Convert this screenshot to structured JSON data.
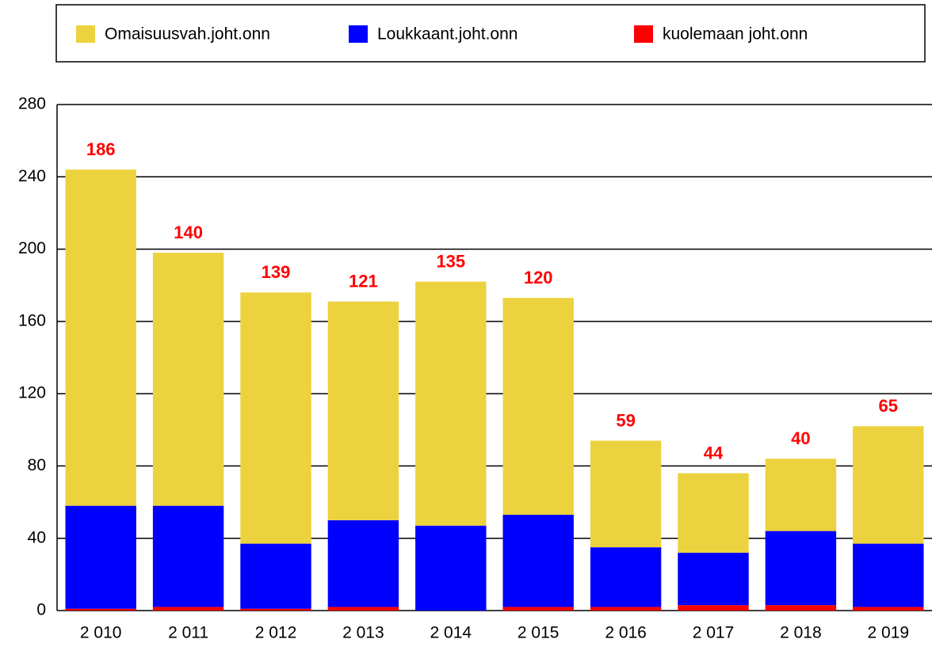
{
  "chart_data": {
    "type": "bar",
    "stacked": true,
    "categories": [
      "2 010",
      "2 011",
      "2 012",
      "2 013",
      "2 014",
      "2 015",
      "2 016",
      "2 017",
      "2 018",
      "2 019"
    ],
    "series": [
      {
        "name": "Omaisuusvah.joht.onn",
        "color": "#ecd23e",
        "values": [
          186,
          140,
          139,
          121,
          135,
          120,
          59,
          44,
          40,
          65
        ]
      },
      {
        "name": "Loukkaant.joht.onn",
        "color": "#0000ff",
        "values": [
          57,
          56,
          36,
          48,
          47,
          51,
          33,
          29,
          41,
          35
        ]
      },
      {
        "name": "kuolemaan joht.onn",
        "color": "#ff0000",
        "values": [
          1,
          2,
          1,
          2,
          0,
          2,
          2,
          3,
          3,
          2
        ]
      }
    ],
    "ylim": [
      0,
      280
    ],
    "yticks": [
      0,
      40,
      80,
      120,
      160,
      200,
      240,
      280
    ],
    "grid": true,
    "legend": "top"
  }
}
